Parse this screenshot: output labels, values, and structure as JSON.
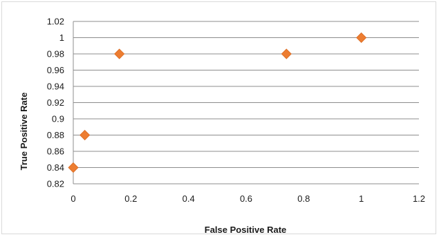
{
  "chart_data": {
    "type": "scatter",
    "title": "",
    "xlabel": "False Positive Rate",
    "ylabel": "True Positive Rate",
    "xlim": [
      0,
      1.2
    ],
    "ylim": [
      0.82,
      1.02
    ],
    "x_ticks": [
      "0",
      "0.2",
      "0.4",
      "0.6",
      "0.8",
      "1",
      "1.2"
    ],
    "y_ticks": [
      "0.82",
      "0.84",
      "0.86",
      "0.88",
      "0.9",
      "0.92",
      "0.94",
      "0.96",
      "0.98",
      "1",
      "1.02"
    ],
    "grid": "horizontal",
    "legend": "none",
    "marker": "diamond",
    "marker_color": "#ED7D31",
    "points": [
      {
        "x": 0.0,
        "y": 0.84
      },
      {
        "x": 0.04,
        "y": 0.88
      },
      {
        "x": 0.16,
        "y": 0.98
      },
      {
        "x": 0.74,
        "y": 0.98
      },
      {
        "x": 1.0,
        "y": 1.0
      }
    ]
  }
}
